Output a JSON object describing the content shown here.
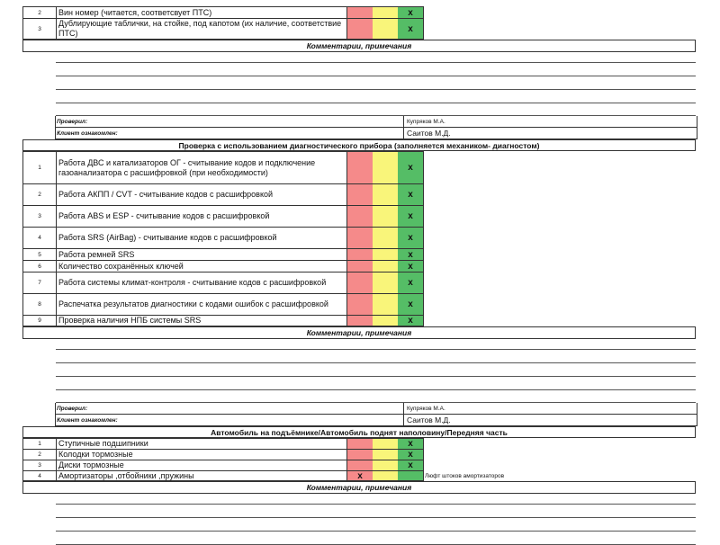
{
  "colors": {
    "red": "#f58a8a",
    "yellow": "#f9f57a",
    "green": "#55bd66"
  },
  "section0": {
    "items": [
      {
        "num": "2",
        "desc": "Вин номер (читается, соответсвует ПТС)",
        "green": "x"
      },
      {
        "num": "3",
        "desc": "Дублирующие таблички, на стойке, под капотом (их наличие, соответствие ПТС)",
        "green": "x"
      }
    ],
    "comments": "Комментарии, примечания",
    "checked_label": "Проверил:",
    "checked_value": "Купряков М.А.",
    "client_label": "Клиент ознакомлен:",
    "client_value": "Саитов М.Д."
  },
  "section1": {
    "title": "Проверка с использованием диагностического прибора (заполняется механиком- диагностом)",
    "items": [
      {
        "num": "1",
        "desc": "Работа ДВС и катализаторов ОГ - считывание кодов и подключение газоанализатора с расшифровкой (при необходимости)",
        "green": "x"
      },
      {
        "num": "2",
        "desc": "Работа АКПП / CVT - считывание кодов с расшифровкой",
        "green": "x"
      },
      {
        "num": "3",
        "desc": "Работа ABS и ESP - считывание кодов с расшифровкой",
        "green": "x"
      },
      {
        "num": "4",
        "desc": "Работа SRS (AirBag) - считывание кодов с расшифровкой",
        "green": "x"
      },
      {
        "num": "5",
        "desc": "Работа ремней SRS",
        "green": "x"
      },
      {
        "num": "6",
        "desc": "Количество сохранённых ключей",
        "green": "x"
      },
      {
        "num": "7",
        "desc": "Работа системы климат-контроля - считывание кодов с расшифровкой",
        "green": "x"
      },
      {
        "num": "8",
        "desc": "Распечатка результатов диагностики с кодами ошибок с расшифровкой",
        "green": "x"
      },
      {
        "num": "9",
        "desc": "Проверка наличия НПБ системы SRS",
        "green": "x"
      }
    ],
    "comments": "Комментарии, примечания",
    "checked_label": "Проверил:",
    "checked_value": "Купряков М.А.",
    "client_label": "Клиент ознакомлен:",
    "client_value": "Саитов М.Д."
  },
  "section2": {
    "title": "Автомобиль на подъёмнике/Автомобиль поднят наполовину/Передняя часть",
    "items": [
      {
        "num": "1",
        "desc": "Ступичные подшипники",
        "green": "x"
      },
      {
        "num": "2",
        "desc": "Колодки тормозные",
        "green": "x"
      },
      {
        "num": "3",
        "desc": "Диски тормозные",
        "green": "x"
      },
      {
        "num": "4",
        "desc": "Амортизаторы ,отбойники ,пружины",
        "red": "x",
        "note": "Люфт штоков амортизаторов"
      }
    ],
    "comments": "Комментарии, примечания"
  }
}
